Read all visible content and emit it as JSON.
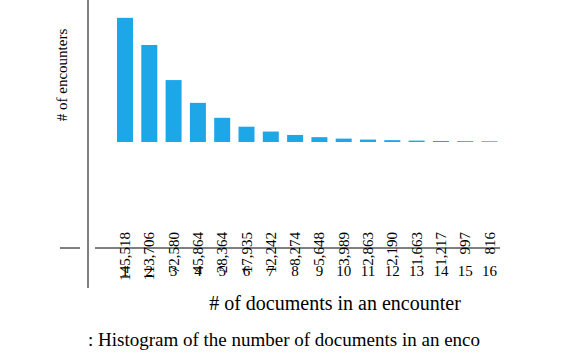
{
  "chart_data": {
    "type": "bar",
    "x_label": "# of documents in an encounter",
    "y_label": "# of encounters",
    "caption": ": Histogram of the number of documents in an enco",
    "categories": [
      "1",
      "2",
      "3",
      "4",
      "5",
      "6",
      "7",
      "8",
      "9",
      "10",
      "11",
      "12",
      "13",
      "14",
      "15",
      "16"
    ],
    "values": [
      145518,
      113706,
      72580,
      45864,
      28364,
      17935,
      12242,
      8274,
      5648,
      3989,
      2863,
      2190,
      1663,
      1217,
      997,
      816
    ],
    "value_labels": [
      "145,518",
      "113,706",
      "72,580",
      "45,864",
      "28,364",
      "17,935",
      "12,242",
      "8,274",
      "5,648",
      "3,989",
      "2,863",
      "2,190",
      "1,663",
      "1,217",
      "997",
      "816"
    ],
    "color": "#1ea7e8",
    "ylim": [
      0,
      150000
    ],
    "data_labels": true,
    "tick_labels": "x",
    "grid": false
  }
}
